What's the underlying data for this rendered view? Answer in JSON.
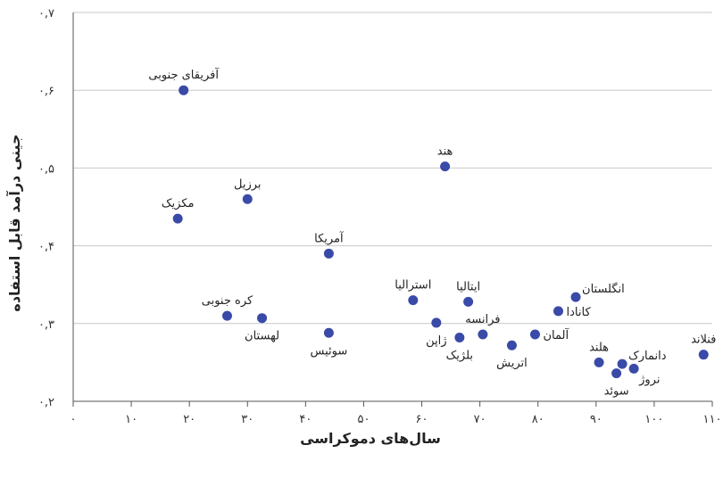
{
  "chart_data": {
    "type": "scatter",
    "title": "",
    "xlabel": "سال‌های دموکراسی",
    "ylabel": "جینی درآمد قابل استفاده",
    "xlim": [
      0,
      110
    ],
    "ylim": [
      0.2,
      0.7
    ],
    "x_ticks": [
      0,
      10,
      20,
      30,
      40,
      50,
      60,
      70,
      80,
      90,
      100,
      110
    ],
    "y_ticks": [
      0.2,
      0.3,
      0.4,
      0.5,
      0.6,
      0.7
    ],
    "x_tick_labels": [
      "۰",
      "۱۰",
      "۲۰",
      "۳۰",
      "۴۰",
      "۵۰",
      "۶۰",
      "۷۰",
      "۸۰",
      "۹۰",
      "۱۰۰",
      "۱۱۰"
    ],
    "y_tick_labels": [
      "۰,۲",
      "۰,۳",
      "۰,۴",
      "۰,۵",
      "۰,۶",
      "۰,۷"
    ],
    "grid": true,
    "marker_color": "#3a4aa8",
    "points": [
      {
        "label": "آفریقای جنوبی",
        "x": 19,
        "y": 0.6,
        "label_pos": "above"
      },
      {
        "label": "مکزیک",
        "x": 18,
        "y": 0.435,
        "label_pos": "above"
      },
      {
        "label": "برزیل",
        "x": 30,
        "y": 0.46,
        "label_pos": "above"
      },
      {
        "label": "هند",
        "x": 64,
        "y": 0.502,
        "label_pos": "above"
      },
      {
        "label": "آمریکا",
        "x": 44,
        "y": 0.39,
        "label_pos": "above"
      },
      {
        "label": "کره جنوبی",
        "x": 26.5,
        "y": 0.31,
        "label_pos": "above"
      },
      {
        "label": "لهستان",
        "x": 32.5,
        "y": 0.307,
        "label_pos": "below"
      },
      {
        "label": "سوئیس",
        "x": 44,
        "y": 0.288,
        "label_pos": "below"
      },
      {
        "label": "استرالیا",
        "x": 58.5,
        "y": 0.33,
        "label_pos": "above"
      },
      {
        "label": "ژاپن",
        "x": 62.5,
        "y": 0.301,
        "label_pos": "below"
      },
      {
        "label": "ایتالیا",
        "x": 68,
        "y": 0.328,
        "label_pos": "above"
      },
      {
        "label": "بلژیک",
        "x": 66.5,
        "y": 0.282,
        "label_pos": "below"
      },
      {
        "label": "فرانسه",
        "x": 70.5,
        "y": 0.286,
        "label_pos": "above"
      },
      {
        "label": "اتریش",
        "x": 75.5,
        "y": 0.272,
        "label_pos": "below"
      },
      {
        "label": "آلمان",
        "x": 79.5,
        "y": 0.286,
        "label_pos": "right"
      },
      {
        "label": "کانادا",
        "x": 83.5,
        "y": 0.316,
        "label_pos": "right"
      },
      {
        "label": "انگلستان",
        "x": 86.5,
        "y": 0.334,
        "label_pos": "right-up"
      },
      {
        "label": "هلند",
        "x": 90.5,
        "y": 0.25,
        "label_pos": "above"
      },
      {
        "label": "سوئد",
        "x": 93.5,
        "y": 0.236,
        "label_pos": "below"
      },
      {
        "label": "دانمارک",
        "x": 94.5,
        "y": 0.248,
        "label_pos": "right-up"
      },
      {
        "label": "نروژ",
        "x": 96.5,
        "y": 0.242,
        "label_pos": "right-down"
      },
      {
        "label": "فنلاند",
        "x": 108.5,
        "y": 0.26,
        "label_pos": "above"
      }
    ]
  }
}
